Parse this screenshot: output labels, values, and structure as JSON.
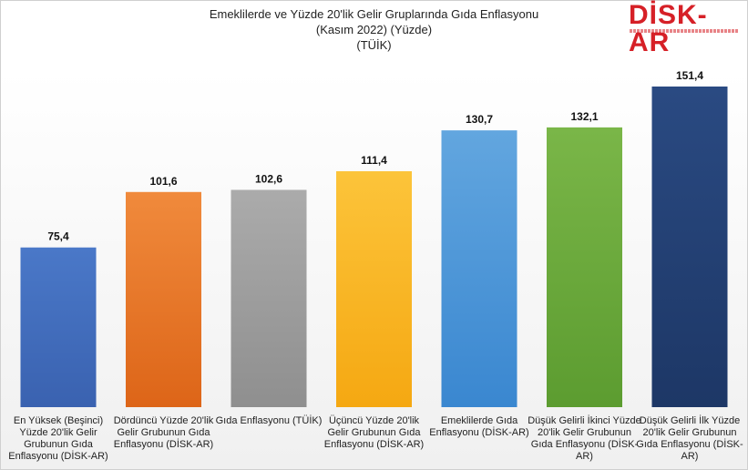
{
  "header": {
    "title_line1": "Emeklilerde ve Yüzde 20'lik Gelir Gruplarında Gıda Enflasyonu",
    "title_line2": "(Kasım 2022) (Yüzde)",
    "title_line3": "(TÜİK)",
    "logo_text": "DİSK-AR"
  },
  "chart_data": {
    "type": "bar",
    "title": "Emeklilerde ve Yüzde 20'lik Gelir Gruplarında Gıda Enflasyonu (Kasım 2022) (Yüzde) (TÜİK)",
    "xlabel": "",
    "ylabel": "",
    "ylim": [
      0,
      160
    ],
    "grid": false,
    "categories": [
      [
        "En Yüksek (Beşinci)",
        "Yüzde 20'lik Gelir",
        "Grubunun Gıda",
        "Enflasyonu (DİSK-AR)"
      ],
      [
        "Dördüncü Yüzde 20'lik",
        "Gelir Grubunun Gıda",
        "Enflasyonu (DİSK-AR)"
      ],
      [
        "Gıda Enflasyonu (TÜİK)"
      ],
      [
        "Üçüncü Yüzde 20'lik",
        "Gelir Grubunun Gıda",
        "Enflasyonu (DİSK-AR)"
      ],
      [
        "Emeklilerde Gıda",
        "Enflasyonu (DİSK-AR)"
      ],
      [
        "Düşük Gelirli İkinci Yüzde",
        "20'lik Gelir Grubunun",
        "Gıda Enflasyonu (DİSK-",
        "AR)"
      ],
      [
        "Düşük Gelirli İlk Yüzde",
        "20'lik Gelir Grubunun",
        "Gıda Enflasyonu (DİSK-",
        "AR)"
      ]
    ],
    "values": [
      75.4,
      101.6,
      102.6,
      111.4,
      130.7,
      132.1,
      151.4
    ],
    "value_labels": [
      "75,4",
      "101,6",
      "102,6",
      "111,4",
      "130,7",
      "132,1",
      "151,4"
    ],
    "colors": [
      [
        "#4a78c8",
        "#3a62b0"
      ],
      [
        "#f08a3c",
        "#dd6518"
      ],
      [
        "#ababab",
        "#8f8f8f"
      ],
      [
        "#fcc43a",
        "#f5a812"
      ],
      [
        "#62a6df",
        "#3a87d0"
      ],
      [
        "#7ab648",
        "#5c9c30"
      ],
      [
        "#2a4a82",
        "#1d3766"
      ]
    ]
  }
}
